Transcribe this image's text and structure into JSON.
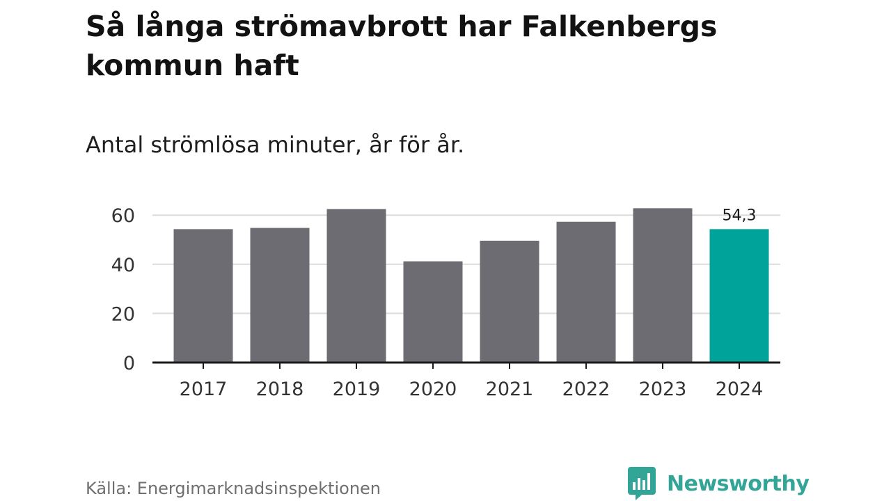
{
  "header": {
    "title": "Så långa strömavbrott har Falkenbergs kommun haft",
    "subtitle": "Antal strömlösa minuter, år för år."
  },
  "footer": {
    "source": "Källa: Energimarknadsinspektionen",
    "brand": "Newsworthy",
    "brand_icon": "bar-chart-speech-bubble-icon"
  },
  "colors": {
    "bar": "#6d6c72",
    "highlight": "#00a39a",
    "grid": "#dcdcdc",
    "axis": "#1a1a1a",
    "brand": "#33a597"
  },
  "chart_data": {
    "type": "bar",
    "title": "Så långa strömavbrott har Falkenbergs kommun haft",
    "subtitle": "Antal strömlösa minuter, år för år.",
    "categories": [
      "2017",
      "2018",
      "2019",
      "2020",
      "2021",
      "2022",
      "2023",
      "2024"
    ],
    "values": [
      54.3,
      54.8,
      62.5,
      41.2,
      49.6,
      57.3,
      62.8,
      54.3
    ],
    "highlight_index": 7,
    "data_labels": [
      "",
      "",
      "",
      "",
      "",
      "",
      "",
      "54,3"
    ],
    "ylim": [
      0,
      70
    ],
    "yticks": [
      0,
      20,
      40,
      60
    ],
    "ytick_labels": [
      "0",
      "20",
      "40",
      "60"
    ],
    "grid": true,
    "xlabel": "",
    "ylabel": ""
  }
}
